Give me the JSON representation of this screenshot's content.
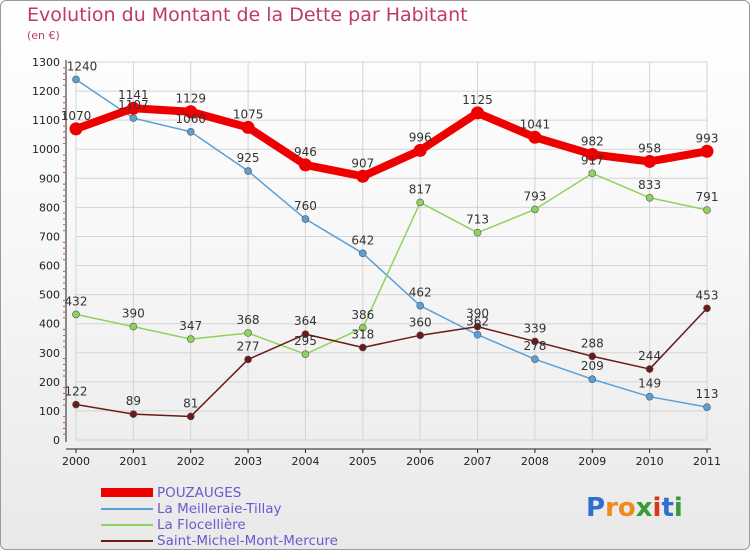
{
  "title": "Evolution du Montant de la Dette par Habitant",
  "subtitle": "(en €)",
  "logo": {
    "letters": [
      "P",
      "r",
      "o",
      "x",
      "i",
      "t",
      "i"
    ],
    "colors": [
      "#2e6fcf",
      "#f08a1c",
      "#f08a1c",
      "#3a9a3a",
      "#d9341f",
      "#2e6fcf",
      "#3a9a3a"
    ]
  },
  "chart_data": {
    "type": "line",
    "title": "Evolution du Montant de la Dette par Habitant",
    "subtitle": "(en €)",
    "xlabel": "",
    "ylabel": "",
    "x": [
      "2000",
      "2001",
      "2002",
      "2003",
      "2004",
      "2005",
      "2006",
      "2007",
      "2008",
      "2009",
      "2010",
      "2011"
    ],
    "ylim": [
      0,
      1300
    ],
    "yticks": [
      "0",
      "100",
      "200",
      "300",
      "400",
      "500",
      "600",
      "700",
      "800",
      "900",
      "1000",
      "1100",
      "1200",
      "1300"
    ],
    "grid": true,
    "legend_position": "bottom-left",
    "series": [
      {
        "name": "POUZAUGES",
        "color": "#ee0000",
        "values": [
          1070,
          1141,
          1129,
          1075,
          946,
          907,
          996,
          1125,
          1041,
          982,
          958,
          993
        ],
        "labels": [
          "1070",
          "1141",
          "1129",
          "1075",
          "946",
          "907",
          "996",
          "1125",
          "1041",
          "982",
          "958",
          "993"
        ]
      },
      {
        "name": "La Meilleraie-Tillay",
        "color": "#5aa0d8",
        "values": [
          1240,
          1107,
          1060,
          925,
          760,
          642,
          462,
          362,
          278,
          209,
          149,
          113
        ],
        "labels": [
          "1240",
          "1107",
          "1060",
          "925",
          "760",
          "642",
          "462",
          "362",
          "278",
          "209",
          "149",
          "113"
        ]
      },
      {
        "name": "La Flocellière",
        "color": "#8ed45c",
        "values": [
          432,
          390,
          347,
          368,
          295,
          386,
          817,
          713,
          793,
          917,
          833,
          791
        ],
        "labels": [
          "432",
          "390",
          "347",
          "368",
          "295",
          "386",
          "817",
          "713",
          "793",
          "917",
          "833",
          "791"
        ]
      },
      {
        "name": "Saint-Michel-Mont-Mercure",
        "color": "#6b1a1a",
        "values": [
          122,
          89,
          81,
          277,
          364,
          318,
          360,
          390,
          339,
          288,
          244,
          453
        ],
        "labels": [
          "122",
          "89",
          "81",
          "277",
          "364",
          "318",
          "360",
          "390",
          "339",
          "288",
          "244",
          "453"
        ]
      }
    ]
  }
}
